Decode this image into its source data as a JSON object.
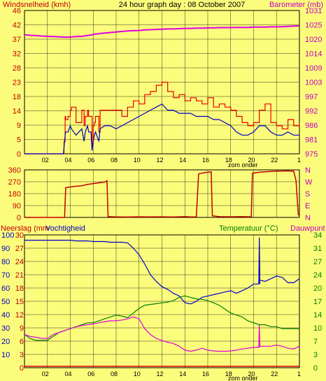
{
  "chart_data": [
    {
      "type": "line",
      "title": "24 hour graph day : 08 October 2007",
      "ylabel_left": "Windsnelheid (kmh)",
      "ylabel_right": "Barometer (mb)",
      "yticks_left": [
        "0",
        "5",
        "9",
        "14",
        "18",
        "23",
        "28",
        "32",
        "37",
        "42",
        "46"
      ],
      "yticks_right": [
        "975",
        "981",
        "986",
        "992",
        "997",
        "1003",
        "1009",
        "1014",
        "1020",
        "1025",
        "1031"
      ],
      "ylim_left": [
        0,
        46
      ],
      "ylim_right": [
        975,
        1031
      ],
      "xticks": [
        "02",
        "04",
        "06",
        "08",
        "10",
        "12",
        "14",
        "16",
        "18",
        "20",
        "22",
        "1"
      ],
      "x_hours": [
        0,
        0.5,
        1,
        1.5,
        2,
        2.5,
        3,
        3.4,
        3.45,
        3.55,
        3.6,
        3.8,
        4,
        4.1,
        4.5,
        5,
        5.2,
        5.3,
        5.5,
        5.6,
        5.8,
        5.9,
        6,
        6.1,
        6.2,
        6.5,
        6.6,
        7,
        7.5,
        8,
        8.5,
        9,
        9.5,
        10,
        10.5,
        11,
        11.5,
        12,
        12.5,
        13,
        13.5,
        14,
        14.5,
        15,
        15.5,
        16,
        16.5,
        17,
        17.5,
        18,
        18.5,
        19,
        19.5,
        20,
        20.5,
        21,
        21.5,
        22,
        22.5,
        23,
        23.5,
        24
      ],
      "gust_red": [
        0,
        0,
        0,
        0,
        0,
        0,
        0,
        0,
        4,
        12,
        11,
        12,
        14,
        15,
        10,
        14,
        9,
        12,
        14,
        12,
        12,
        3,
        9,
        10,
        12,
        7,
        14,
        14,
        14,
        14,
        12,
        15,
        17,
        16,
        19,
        20,
        22,
        23,
        20,
        18,
        19,
        17,
        18,
        17,
        16,
        18,
        15,
        16,
        15,
        14,
        12,
        10,
        9,
        10,
        14,
        16,
        10,
        9,
        8,
        11,
        9,
        10
      ],
      "avg_blue": [
        0,
        0,
        0,
        0,
        0,
        0,
        0,
        0,
        2,
        6,
        7,
        7,
        9,
        8,
        6,
        8,
        4,
        7,
        9,
        7,
        7,
        1,
        4,
        6,
        7,
        4,
        8,
        9,
        9,
        8,
        9,
        10,
        11,
        12,
        13,
        14,
        15,
        16,
        14,
        14,
        13,
        13,
        13,
        12,
        12,
        12,
        11,
        11,
        10,
        9,
        7,
        6,
        6,
        7,
        9,
        9,
        7,
        6,
        6,
        7,
        6,
        6
      ],
      "barometer_magenta": [
        1021.5,
        1021.3,
        1021.2,
        1021.0,
        1020.9,
        1020.8,
        1020.7,
        1020.6,
        1020.6,
        1020.6,
        1020.6,
        1020.6,
        1020.6,
        1020.7,
        1020.8,
        1020.9,
        1021.0,
        1021.1,
        1021.2,
        1021.3,
        1021.4,
        1021.5,
        1021.6,
        1021.7,
        1021.8,
        1021.9,
        1022.0,
        1022.2,
        1022.4,
        1022.6,
        1022.8,
        1023.0,
        1023.1,
        1023.2,
        1023.4,
        1023.5,
        1023.6,
        1023.7,
        1023.8,
        1023.8,
        1023.9,
        1024.0,
        1024.0,
        1024.1,
        1024.1,
        1024.2,
        1024.2,
        1024.3,
        1024.3,
        1024.3,
        1024.4,
        1024.4,
        1024.4,
        1024.5,
        1024.5,
        1024.5,
        1024.6,
        1024.6,
        1024.7,
        1024.8,
        1024.9,
        1025.0
      ]
    },
    {
      "type": "line",
      "yticks_left": [
        "0",
        "90",
        "180",
        "270",
        "360"
      ],
      "yticks_right": [
        "N",
        "E",
        "S",
        "W",
        "N"
      ],
      "ylim": [
        0,
        360
      ],
      "direction_deg": [
        [
          0,
          0
        ],
        [
          3.5,
          0
        ],
        [
          3.6,
          226
        ],
        [
          4.5,
          236
        ],
        [
          5,
          240
        ],
        [
          5.5,
          250
        ],
        [
          6,
          256
        ],
        [
          6.5,
          262
        ],
        [
          7,
          268
        ],
        [
          7.2,
          278
        ],
        [
          7.3,
          6
        ],
        [
          8,
          4
        ],
        [
          9,
          3
        ],
        [
          10,
          5
        ],
        [
          11,
          4
        ],
        [
          12,
          5
        ],
        [
          13,
          3
        ],
        [
          14,
          6
        ],
        [
          14.5,
          4
        ],
        [
          15,
          5
        ],
        [
          15.2,
          330
        ],
        [
          15.8,
          340
        ],
        [
          16.3,
          345
        ],
        [
          16.4,
          12
        ],
        [
          17,
          6
        ],
        [
          18,
          5
        ],
        [
          19,
          6
        ],
        [
          19.8,
          5
        ],
        [
          19.9,
          335
        ],
        [
          20.5,
          342
        ],
        [
          21,
          345
        ],
        [
          22,
          350
        ],
        [
          23,
          352
        ],
        [
          23.5,
          350
        ],
        [
          23.7,
          280
        ],
        [
          23.9,
          20
        ],
        [
          24,
          15
        ]
      ]
    },
    {
      "type": "line",
      "ylabel_neerslag": "Neerslag (mm",
      "ylabel_vocht": "Vochtigheid",
      "ylabel_temp": "Temperatuur (°C)",
      "ylabel_dauw": "Dauwpunt",
      "yticks_neerslag": [
        "0",
        "3",
        "6",
        "9",
        "12",
        "15",
        "18",
        "21",
        "24",
        "27",
        "30"
      ],
      "yticks_vocht": [
        "10",
        "20",
        "30",
        "40",
        "50",
        "60",
        "70",
        "80",
        "90",
        "100"
      ],
      "yticks_temp": [
        "0",
        "3",
        "7",
        "10",
        "14",
        "17",
        "20",
        "24",
        "27",
        "31",
        "34"
      ],
      "ylim_vocht": [
        0,
        100
      ],
      "ylim_temp": [
        0,
        34
      ],
      "x_hours": [
        0,
        0.5,
        1,
        1.5,
        2,
        2.5,
        3,
        3.5,
        4,
        4.5,
        5,
        5.5,
        6,
        6.5,
        7,
        7.5,
        8,
        8.5,
        9,
        9.5,
        10,
        10.5,
        11,
        11.5,
        12,
        12.5,
        13,
        13.5,
        14,
        14.5,
        15,
        15.5,
        16,
        16.5,
        17,
        17.5,
        18,
        18.5,
        19,
        19.5,
        20,
        20.5,
        21,
        21.5,
        22,
        22.5,
        23,
        23.5,
        24
      ],
      "humidity_blue": [
        96,
        96,
        96,
        96,
        96,
        96,
        96,
        96,
        96,
        95.5,
        95.5,
        95.5,
        95,
        95,
        95,
        94.5,
        94.5,
        94.5,
        94,
        90,
        85,
        78,
        70,
        65,
        61,
        59,
        56,
        54,
        49,
        48,
        50,
        53,
        54,
        55,
        56,
        57,
        58,
        56,
        58,
        60,
        63,
        66,
        65,
        67,
        69,
        68,
        64,
        64,
        67
      ],
      "temperature_green": [
        8.5,
        7.5,
        7,
        7,
        7,
        8,
        9,
        9.5,
        10,
        10.5,
        11,
        11.5,
        11.5,
        12,
        12.5,
        13,
        13.5,
        13.2,
        12.8,
        14,
        15.2,
        16,
        16.2,
        16.4,
        16.6,
        16.8,
        17.2,
        18,
        18.4,
        18,
        17.6,
        17.5,
        17.2,
        16.6,
        16,
        15,
        14,
        13.5,
        13,
        12,
        11.5,
        11,
        11,
        10.5,
        10.5,
        10,
        10,
        10,
        10
      ],
      "dewpoint_magenta": [
        8.5,
        8,
        7.8,
        7.5,
        7.5,
        8.5,
        9,
        9.5,
        10,
        10.5,
        10.8,
        11,
        11.2,
        11.5,
        11.8,
        12,
        12,
        12.2,
        12.5,
        13,
        12.5,
        10,
        8.5,
        7.5,
        7,
        6.5,
        6.2,
        5.5,
        4.5,
        4.2,
        4.5,
        5,
        4.5,
        4.3,
        4.2,
        4.2,
        4.3,
        4.5,
        4.8,
        5,
        5.2,
        5.5,
        5.5,
        5.5,
        5.8,
        5.5,
        5,
        4.8,
        5.5
      ],
      "humidity_spike": {
        "hour": 20.5,
        "value": 98
      },
      "dewpoint_spike": {
        "hour": 20.5,
        "value": 11
      },
      "rain_red_mm": 0
    }
  ],
  "labels": {
    "zon_onder": "zom onder"
  },
  "colors": {
    "plot_bg": "#fcfc7c",
    "gust": "#e80000",
    "avg": "#0000c8",
    "barometer": "#e000e0",
    "humidity": "#0000d0",
    "temperature": "#008000",
    "dewpoint": "#e000e0",
    "rain": "#e00000",
    "left_axis_text": "#c00000",
    "right_axis_text": "#c000c0",
    "temp_axis_text": "#008000"
  }
}
